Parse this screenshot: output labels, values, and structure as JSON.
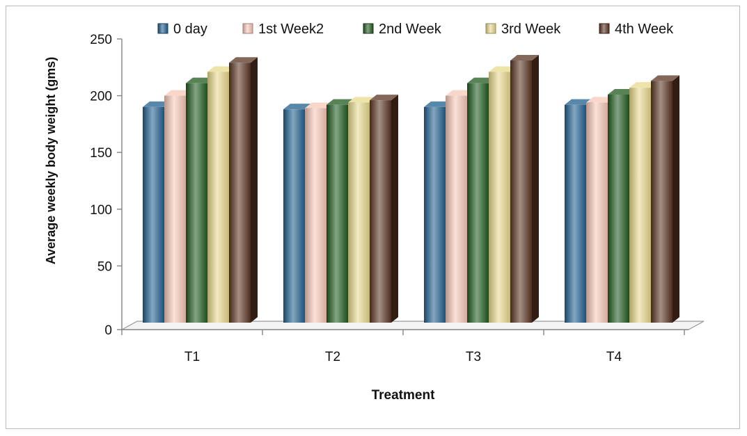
{
  "chart_data": {
    "type": "bar",
    "categories": [
      "T1",
      "T2",
      "T3",
      "T4"
    ],
    "series": [
      {
        "name": "0 day",
        "color": "#1f5f8f",
        "values": [
          190,
          188,
          190,
          192
        ]
      },
      {
        "name": "1st Week2",
        "color": "#f7c8b8",
        "values": [
          200,
          189,
          200,
          194
        ]
      },
      {
        "name": "2nd Week",
        "color": "#1f5a1f",
        "values": [
          211,
          192,
          211,
          201
        ]
      },
      {
        "name": "3rd Week",
        "color": "#e8d98c",
        "values": [
          221,
          194,
          221,
          207
        ]
      },
      {
        "name": "4th Week",
        "color": "#5a3422",
        "values": [
          229,
          196,
          231,
          213
        ]
      }
    ],
    "xlabel": "Treatment",
    "ylabel": "Average weekly body weight (gms)",
    "ylim": [
      0,
      250
    ],
    "yticks": [
      "0",
      "50",
      "100",
      "150",
      "200",
      "250"
    ],
    "legend_position": "top",
    "grid": false
  }
}
